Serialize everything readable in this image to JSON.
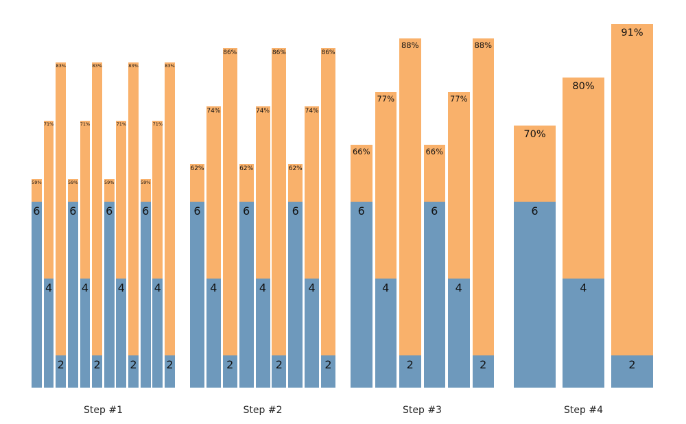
{
  "chart_data": {
    "type": "bar",
    "subtype": "stacked-grouped",
    "title": "",
    "xlabel": "",
    "ylabel": "",
    "grid": false,
    "axes_visible": false,
    "legend": null,
    "background": "#ffffff",
    "colors": {
      "base_segment": "#6E99BC",
      "top_segment": "#F9B16B",
      "label_text": "#111111",
      "tick_text": "#262626"
    },
    "value_unit_note": "blue base segments labeled with counts; full bar labeled with percent at top",
    "groups": [
      {
        "label": "Step #1",
        "bars": [
          {
            "value": 6,
            "pct": 59,
            "pct_text": "59%"
          },
          {
            "value": 4,
            "pct": 71,
            "pct_text": "71%"
          },
          {
            "value": 2,
            "pct": 83,
            "pct_text": "83%"
          },
          {
            "value": 6,
            "pct": 59,
            "pct_text": "59%"
          },
          {
            "value": 4,
            "pct": 71,
            "pct_text": "71%"
          },
          {
            "value": 2,
            "pct": 83,
            "pct_text": "83%"
          },
          {
            "value": 6,
            "pct": 59,
            "pct_text": "59%"
          },
          {
            "value": 4,
            "pct": 71,
            "pct_text": "71%"
          },
          {
            "value": 2,
            "pct": 83,
            "pct_text": "83%"
          },
          {
            "value": 6,
            "pct": 59,
            "pct_text": "59%"
          },
          {
            "value": 4,
            "pct": 71,
            "pct_text": "71%"
          },
          {
            "value": 2,
            "pct": 83,
            "pct_text": "83%"
          }
        ]
      },
      {
        "label": "Step #2",
        "bars": [
          {
            "value": 6,
            "pct": 62,
            "pct_text": "62%"
          },
          {
            "value": 4,
            "pct": 74,
            "pct_text": "74%"
          },
          {
            "value": 2,
            "pct": 86,
            "pct_text": "86%"
          },
          {
            "value": 6,
            "pct": 62,
            "pct_text": "62%"
          },
          {
            "value": 4,
            "pct": 74,
            "pct_text": "74%"
          },
          {
            "value": 2,
            "pct": 86,
            "pct_text": "86%"
          },
          {
            "value": 6,
            "pct": 62,
            "pct_text": "62%"
          },
          {
            "value": 4,
            "pct": 74,
            "pct_text": "74%"
          },
          {
            "value": 2,
            "pct": 86,
            "pct_text": "86%"
          }
        ]
      },
      {
        "label": "Step #3",
        "bars": [
          {
            "value": 6,
            "pct": 66,
            "pct_text": "66%"
          },
          {
            "value": 4,
            "pct": 77,
            "pct_text": "77%"
          },
          {
            "value": 2,
            "pct": 88,
            "pct_text": "88%"
          },
          {
            "value": 6,
            "pct": 66,
            "pct_text": "66%"
          },
          {
            "value": 4,
            "pct": 77,
            "pct_text": "77%"
          },
          {
            "value": 2,
            "pct": 88,
            "pct_text": "88%"
          }
        ]
      },
      {
        "label": "Step #4",
        "bars": [
          {
            "value": 6,
            "pct": 70,
            "pct_text": "70%"
          },
          {
            "value": 4,
            "pct": 80,
            "pct_text": "80%"
          },
          {
            "value": 2,
            "pct": 91,
            "pct_text": "91%"
          }
        ]
      }
    ]
  }
}
